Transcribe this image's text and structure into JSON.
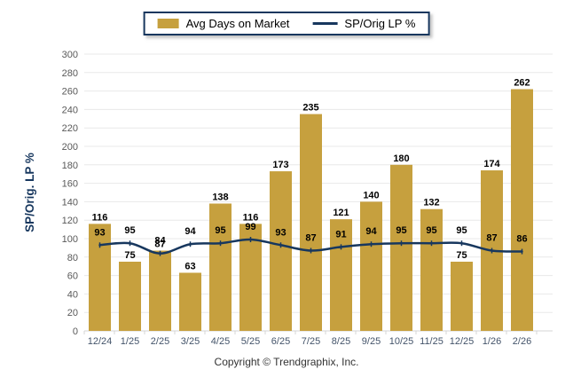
{
  "legend": {
    "bar_label": "Avg Days on Market",
    "line_label": "SP/Orig LP %"
  },
  "footer": {
    "copyright": "Copyright © Trendgraphix, Inc."
  },
  "chart_data": {
    "type": "bar",
    "subtype": "bar-and-line-combo",
    "categories": [
      "12/24",
      "1/25",
      "2/25",
      "3/25",
      "4/25",
      "5/25",
      "6/25",
      "7/25",
      "8/25",
      "9/25",
      "10/25",
      "11/25",
      "12/25",
      "1/26",
      "2/26"
    ],
    "series": [
      {
        "name": "Avg Days on Market",
        "type": "bar",
        "color": "#C6A03E",
        "values": [
          116,
          75,
          87,
          63,
          138,
          116,
          173,
          235,
          121,
          140,
          180,
          132,
          75,
          174,
          262
        ]
      },
      {
        "name": "SP/Orig LP %",
        "type": "line",
        "color": "#17375E",
        "values": [
          93,
          95,
          84,
          94,
          95,
          99,
          93,
          87,
          91,
          94,
          95,
          95,
          95,
          87,
          86
        ]
      }
    ],
    "title": "",
    "xlabel": "",
    "ylabel": "SP/Orig. LP %",
    "ylim": [
      0,
      300
    ],
    "ytick_step": 20,
    "grid": true,
    "legend_position": "top",
    "value_labels": true
  },
  "colors": {
    "bar": "#C6A03E",
    "line": "#17375E",
    "grid": "#e8e8e8",
    "axis": "#d4d4d4",
    "ytick_text": "#595959",
    "xtick_text": "#44546A",
    "axis_title": "#17375E",
    "value_label": "#000000"
  }
}
